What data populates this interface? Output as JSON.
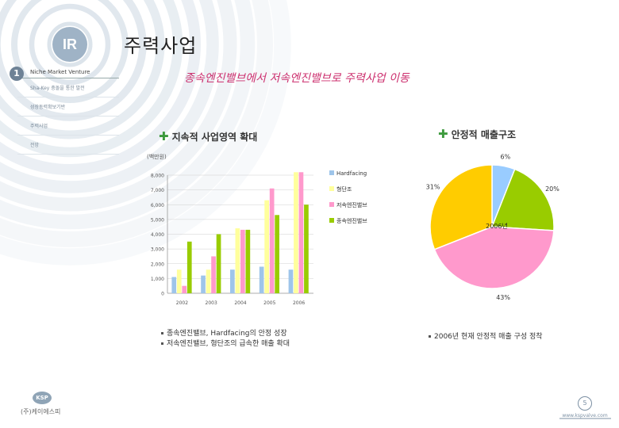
{
  "header": {
    "logo": "IR",
    "title": "주력사업"
  },
  "sidebar": {
    "number": "1",
    "heading": "Niche Market Venture",
    "items": [
      {
        "label": "Sha-Key 충돌을 통한 발전"
      },
      {
        "label": "성장동력확보기반"
      },
      {
        "label": "주력사업"
      },
      {
        "label": "전망"
      }
    ]
  },
  "subtitle": "종속엔진밸브에서 저속엔진밸브로 주력사업 이동",
  "left_section": {
    "heading": "지속적 사업영역 확대"
  },
  "right_section": {
    "heading": "안정적 매출구조"
  },
  "notes_left": [
    "종속엔진밸브, Hardfacing의 안정 성장",
    "저속엔진밸브, 형단조의 급속한 매출 확대"
  ],
  "notes_right": [
    "2006년 현재 안정적 매출 구성 정착"
  ],
  "footer": {
    "company": "(주)케이에스피",
    "logo_text": "KSP",
    "page": "5",
    "url": "www.kspvalve.com"
  },
  "colors": {
    "hardfacing": "#9ec5ea",
    "forging": "#ffff9c",
    "low_speed": "#ff99cc",
    "mid_speed": "#99cc00",
    "pie_blue": "#99ccff",
    "pie_green": "#99cc00",
    "pie_pink": "#ff99cc",
    "pie_yellow": "#ffcc00"
  },
  "chart_data": [
    {
      "type": "bar",
      "unit_label": "(백만원)",
      "categories": [
        "2002",
        "2003",
        "2004",
        "2005",
        "2006"
      ],
      "ylim": [
        0,
        8000
      ],
      "yticks": [
        "0",
        "1,000",
        "2,000",
        "3,000",
        "4,000",
        "5,000",
        "6,000",
        "7,000",
        "8,000"
      ],
      "series": [
        {
          "name": "Hardfacing",
          "values": [
            1100,
            1200,
            1600,
            1800,
            1600
          ]
        },
        {
          "name": "형단조",
          "values": [
            1600,
            1600,
            4400,
            6300,
            8200
          ]
        },
        {
          "name": "저속엔진밸브",
          "values": [
            500,
            2500,
            4300,
            7100,
            8200
          ]
        },
        {
          "name": "종속엔진밸브",
          "values": [
            3500,
            4000,
            4300,
            5300,
            6000
          ]
        }
      ],
      "legend_position": "right"
    },
    {
      "type": "pie",
      "center_label": "2006년",
      "slices": [
        {
          "label": "6%",
          "value": 6
        },
        {
          "label": "20%",
          "value": 20
        },
        {
          "label": "43%",
          "value": 43
        },
        {
          "label": "31%",
          "value": 31
        }
      ]
    }
  ]
}
